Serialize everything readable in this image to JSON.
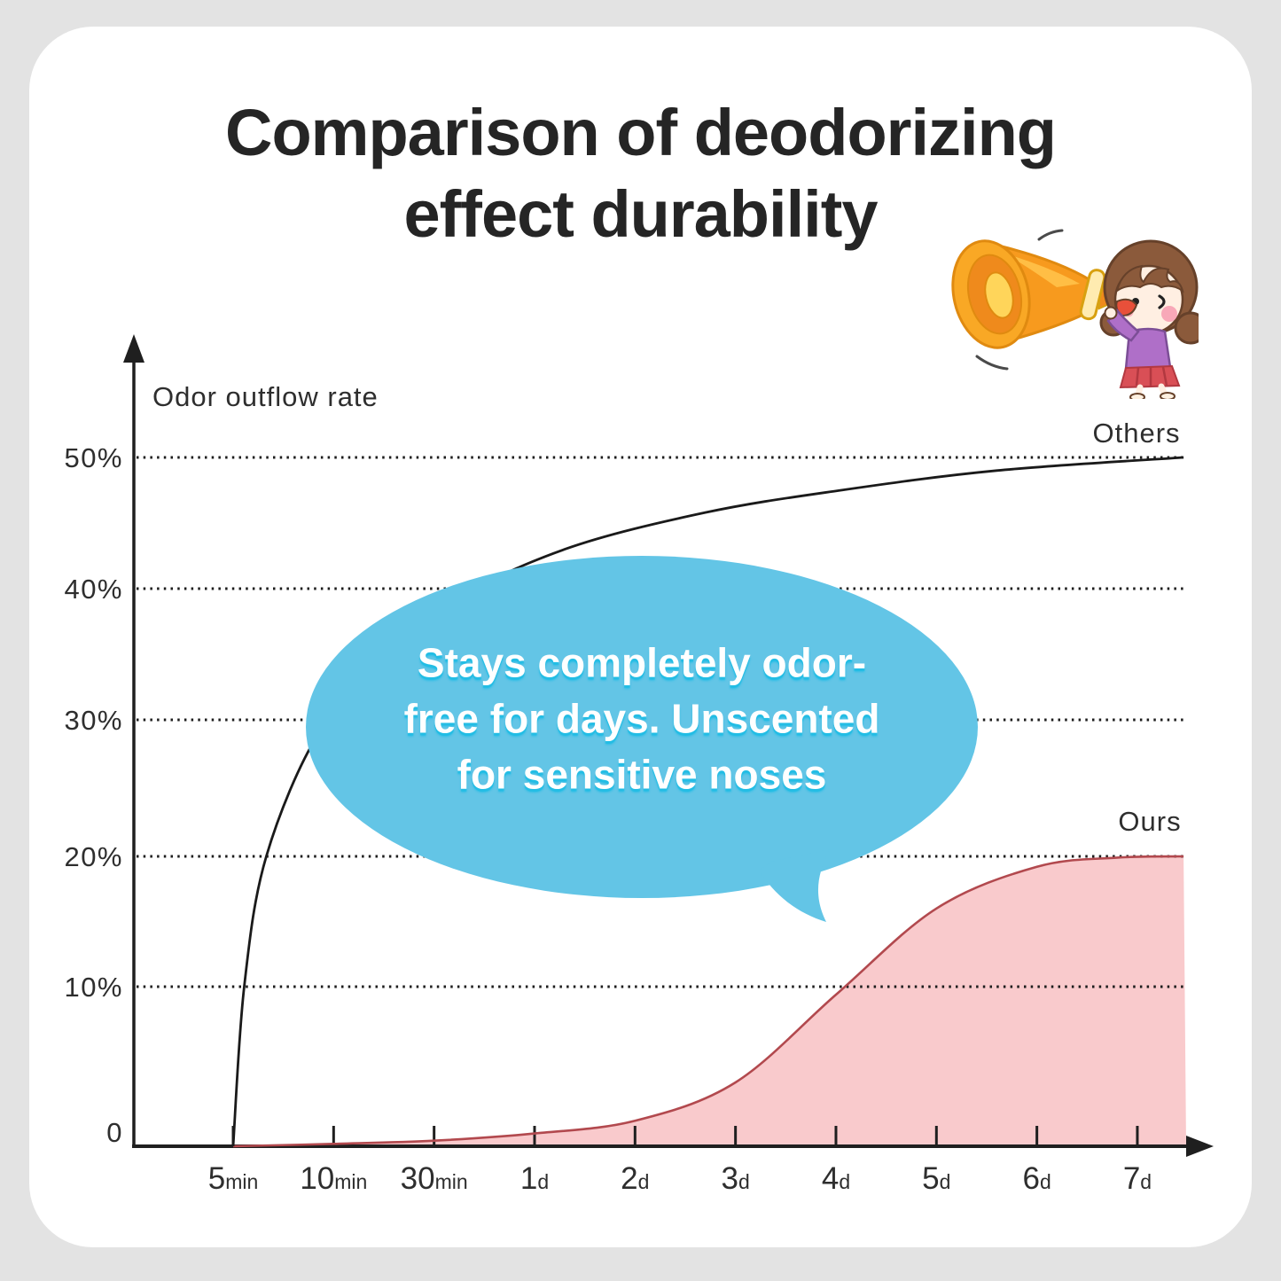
{
  "title": {
    "line1": "Comparison of deodorizing",
    "line2": "effect durability"
  },
  "chart": {
    "axis_title": "Odor outflow rate",
    "y_tick_labels": [
      "50%",
      "40%",
      "30%",
      "20%",
      "10%"
    ],
    "zero_label": "0",
    "x_ticks": [
      {
        "value": "5",
        "unit": "min"
      },
      {
        "value": "10",
        "unit": "min"
      },
      {
        "value": "30",
        "unit": "min"
      },
      {
        "value": "1",
        "unit": "d"
      },
      {
        "value": "2",
        "unit": "d"
      },
      {
        "value": "3",
        "unit": "d"
      },
      {
        "value": "4",
        "unit": "d"
      },
      {
        "value": "5",
        "unit": "d"
      },
      {
        "value": "6",
        "unit": "d"
      },
      {
        "value": "7",
        "unit": "d"
      }
    ],
    "series_labels": {
      "others": "Others",
      "ours": "Ours"
    }
  },
  "bubble": {
    "lines": [
      "Stays completely odor-",
      "free for days. Unscented",
      "for sensitive noses"
    ]
  },
  "colors": {
    "background": "#E3E3E3",
    "card": "#FFFFFF",
    "title_text": "#252525",
    "axis_ink": "#1F1F1F",
    "grid": "#1C1C1C",
    "others_line": "#1A1A1A",
    "ours_line": "#B2494E",
    "ours_fill": "#F9CACC",
    "bubble": "#63C5E6",
    "bubble_text": "#FFFFFF"
  },
  "chart_data": {
    "type": "line",
    "title": "Comparison of deodorizing effect durability",
    "xlabel": "",
    "ylabel": "Odor outflow rate",
    "categories": [
      "5min",
      "10min",
      "30min",
      "1d",
      "2d",
      "3d",
      "4d",
      "5d",
      "6d",
      "7d"
    ],
    "series": [
      {
        "name": "Others",
        "style": "line",
        "values_percent": [
          0,
          31,
          38.5,
          42.5,
          44.8,
          46.2,
          47.4,
          48.4,
          49.2,
          49.9
        ],
        "plateau": 50
      },
      {
        "name": "Ours",
        "style": "area",
        "values_percent": [
          0,
          0.15,
          0.35,
          0.8,
          1.6,
          4,
          9.5,
          16,
          19.2,
          20
        ],
        "plateau": 20
      }
    ],
    "ylim": [
      0,
      55
    ],
    "yticks": [
      "0",
      "10%",
      "20%",
      "30%",
      "40%",
      "50%"
    ],
    "grid": "horizontal dotted",
    "legend_position": "inline labels at right of curves",
    "annotation": "Stays completely odor-free for days. Unscented for sensitive noses",
    "render_samples": {
      "comment": "curve shape sampled as [category-index, percent]; index 0=5min ... 9=7d",
      "Others": [
        [
          0,
          0
        ],
        [
          0.11,
          10
        ],
        [
          0.33,
          20
        ],
        [
          0.85,
          29
        ],
        [
          1.5,
          34
        ],
        [
          2.2,
          39
        ],
        [
          3.3,
          43
        ],
        [
          4.7,
          45.8
        ],
        [
          6.05,
          47.5
        ],
        [
          7.6,
          49
        ],
        [
          9.46,
          50
        ]
      ],
      "Ours": [
        [
          0,
          0
        ],
        [
          1,
          0.15
        ],
        [
          2,
          0.35
        ],
        [
          3,
          0.8
        ],
        [
          4,
          1.6
        ],
        [
          5,
          4
        ],
        [
          6,
          9.5
        ],
        [
          7,
          16
        ],
        [
          8,
          19.2
        ],
        [
          8.8,
          19.9
        ],
        [
          9.46,
          20
        ]
      ]
    }
  }
}
